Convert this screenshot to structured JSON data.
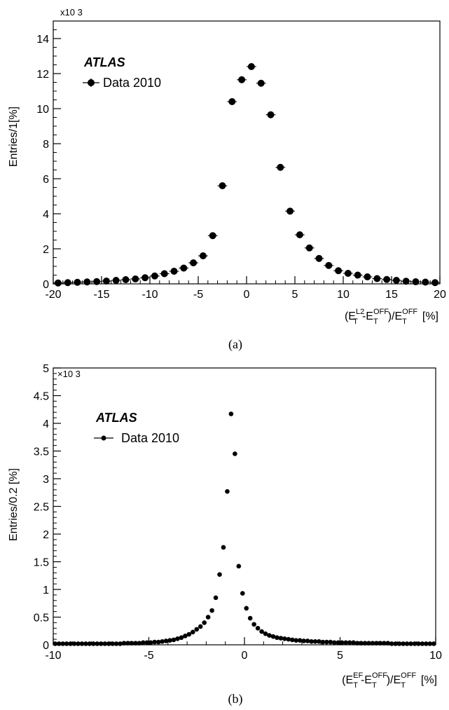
{
  "chart_data": [
    {
      "type": "scatter",
      "panel_label": "(a)",
      "experiment_label": "ATLAS",
      "legend": [
        {
          "label": "Data 2010",
          "marker": "filled-circle-with-errorbar"
        }
      ],
      "legend_placement": "top-left",
      "ylabel": "Entries/1[%]",
      "y_multiplier": "x10 3",
      "xlabel_parts": {
        "open": "(E",
        "sub1": "T",
        "sup1": "L2",
        "mid": "-E",
        "sub2": "T",
        "sup2": "OFF",
        "div": ")/E",
        "sub3": "T",
        "sup3": "OFF",
        "unit": "[%]"
      },
      "xlim": [
        -20,
        20
      ],
      "ylim": [
        0,
        15
      ],
      "x_ticks": [
        "-20",
        "-15",
        "-10",
        "-5",
        "0",
        "5",
        "10",
        "15",
        "20"
      ],
      "y_ticks": [
        "0",
        "2",
        "4",
        "6",
        "8",
        "10",
        "12",
        "14"
      ],
      "grid": false,
      "series": [
        {
          "name": "Data 2010",
          "x": [
            -19.5,
            -18.5,
            -17.5,
            -16.5,
            -15.5,
            -14.5,
            -13.5,
            -12.5,
            -11.5,
            -10.5,
            -9.5,
            -8.5,
            -7.5,
            -6.5,
            -5.5,
            -4.5,
            -3.5,
            -2.5,
            -1.5,
            -0.5,
            0.5,
            1.5,
            2.5,
            3.5,
            4.5,
            5.5,
            6.5,
            7.5,
            8.5,
            9.5,
            10.5,
            11.5,
            12.5,
            13.5,
            14.5,
            15.5,
            16.5,
            17.5,
            18.5,
            19.5
          ],
          "y": [
            0.05,
            0.07,
            0.09,
            0.11,
            0.13,
            0.16,
            0.2,
            0.24,
            0.28,
            0.35,
            0.45,
            0.58,
            0.72,
            0.9,
            1.2,
            1.6,
            2.75,
            5.6,
            10.4,
            11.65,
            12.4,
            11.45,
            9.65,
            6.65,
            4.15,
            2.8,
            2.05,
            1.45,
            1.05,
            0.75,
            0.6,
            0.5,
            0.4,
            0.3,
            0.25,
            0.2,
            0.15,
            0.12,
            0.1,
            0.07
          ]
        }
      ]
    },
    {
      "type": "scatter",
      "panel_label": "(b)",
      "experiment_label": "ATLAS",
      "legend": [
        {
          "label": "Data 2010",
          "marker": "filled-circle"
        }
      ],
      "legend_placement": "top-left",
      "ylabel": "Entries/0.2 [%]",
      "y_multiplier": "×10 3",
      "xlabel_parts": {
        "open": "(E",
        "sub1": "T",
        "sup1": "EF",
        "mid": "-E",
        "sub2": "T",
        "sup2": "OFF",
        "div": ")/E",
        "sub3": "T",
        "sup3": "OFF",
        "unit": "[%]"
      },
      "xlim": [
        -10,
        10
      ],
      "ylim": [
        0,
        5
      ],
      "x_ticks": [
        "-10",
        "-5",
        "0",
        "5",
        "10"
      ],
      "y_ticks": [
        "0",
        "0.5",
        "1",
        "1.5",
        "2",
        "2.5",
        "3",
        "3.5",
        "4",
        "4.5",
        "5"
      ],
      "grid": false,
      "series": [
        {
          "name": "Data 2010",
          "x": [
            -9.9,
            -9.7,
            -9.5,
            -9.3,
            -9.1,
            -8.9,
            -8.7,
            -8.5,
            -8.3,
            -8.1,
            -7.9,
            -7.7,
            -7.5,
            -7.3,
            -7.1,
            -6.9,
            -6.7,
            -6.5,
            -6.3,
            -6.1,
            -5.9,
            -5.7,
            -5.5,
            -5.3,
            -5.1,
            -4.9,
            -4.7,
            -4.5,
            -4.3,
            -4.1,
            -3.9,
            -3.7,
            -3.5,
            -3.3,
            -3.1,
            -2.9,
            -2.7,
            -2.5,
            -2.3,
            -2.1,
            -1.9,
            -1.7,
            -1.5,
            -1.3,
            -1.1,
            -0.9,
            -0.7,
            -0.5,
            -0.3,
            -0.1,
            0.1,
            0.3,
            0.5,
            0.7,
            0.9,
            1.1,
            1.3,
            1.5,
            1.7,
            1.9,
            2.1,
            2.3,
            2.5,
            2.7,
            2.9,
            3.1,
            3.3,
            3.5,
            3.7,
            3.9,
            4.1,
            4.3,
            4.5,
            4.7,
            4.9,
            5.1,
            5.3,
            5.5,
            5.7,
            5.9,
            6.1,
            6.3,
            6.5,
            6.7,
            6.9,
            7.1,
            7.3,
            7.5,
            7.7,
            7.9,
            8.1,
            8.3,
            8.5,
            8.7,
            8.9,
            9.1,
            9.3,
            9.5,
            9.7,
            9.9
          ],
          "y": [
            0.02,
            0.02,
            0.02,
            0.02,
            0.02,
            0.02,
            0.02,
            0.02,
            0.02,
            0.02,
            0.02,
            0.02,
            0.02,
            0.02,
            0.02,
            0.02,
            0.02,
            0.02,
            0.03,
            0.03,
            0.03,
            0.03,
            0.03,
            0.04,
            0.04,
            0.04,
            0.05,
            0.05,
            0.06,
            0.07,
            0.08,
            0.09,
            0.11,
            0.13,
            0.16,
            0.19,
            0.23,
            0.28,
            0.33,
            0.4,
            0.5,
            0.62,
            0.85,
            1.27,
            1.76,
            2.77,
            4.17,
            3.45,
            1.42,
            0.93,
            0.66,
            0.48,
            0.37,
            0.3,
            0.24,
            0.2,
            0.17,
            0.15,
            0.13,
            0.12,
            0.11,
            0.1,
            0.09,
            0.08,
            0.08,
            0.07,
            0.07,
            0.06,
            0.06,
            0.06,
            0.05,
            0.05,
            0.05,
            0.04,
            0.04,
            0.04,
            0.04,
            0.04,
            0.04,
            0.03,
            0.03,
            0.03,
            0.03,
            0.03,
            0.03,
            0.03,
            0.03,
            0.03,
            0.02,
            0.02,
            0.02,
            0.02,
            0.02,
            0.02,
            0.02,
            0.02,
            0.02,
            0.02,
            0.02,
            0.02
          ]
        }
      ]
    }
  ]
}
